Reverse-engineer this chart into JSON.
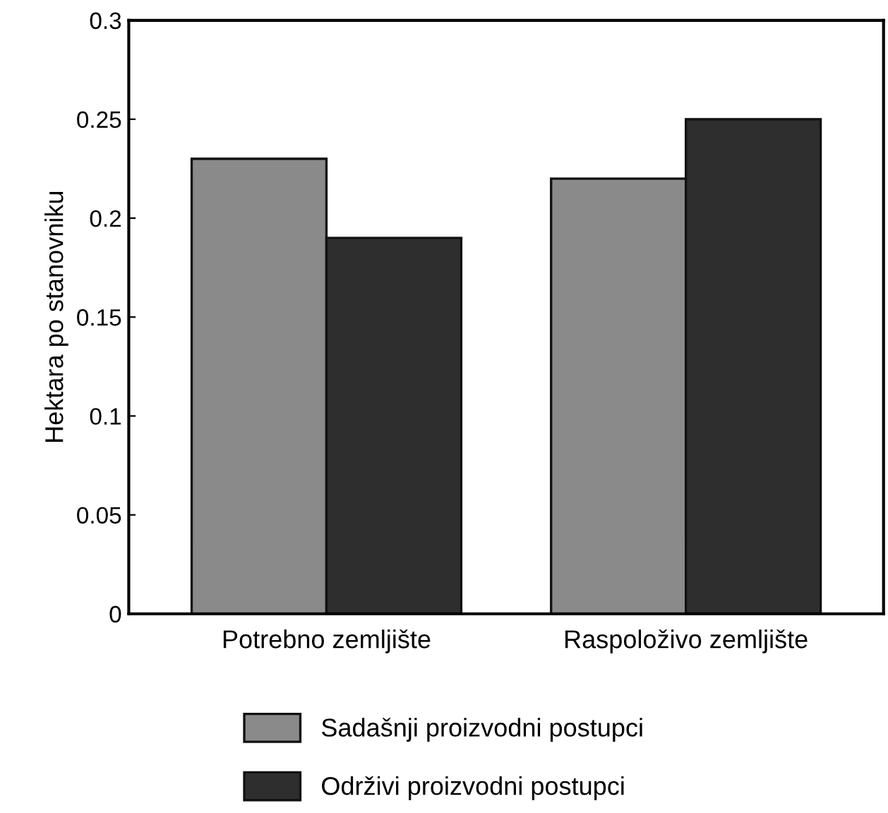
{
  "chart_data": {
    "type": "bar",
    "ylabel": "Hektara po stanovniku",
    "categories": [
      "Potrebno zemljište",
      "Raspoloživo zemljište"
    ],
    "series": [
      {
        "name": "Sadašnji proizvodni postupci",
        "color": "#8a8a8a",
        "values": [
          0.23,
          0.22
        ]
      },
      {
        "name": "Održivi proizvodni postupci",
        "color": "#2e2e2e",
        "values": [
          0.19,
          0.25
        ]
      }
    ],
    "ylim": [
      0,
      0.3
    ],
    "yticks": [
      0,
      0.05,
      0.1,
      0.15,
      0.2,
      0.25,
      0.3
    ],
    "grid": false,
    "legend": "bottom"
  }
}
